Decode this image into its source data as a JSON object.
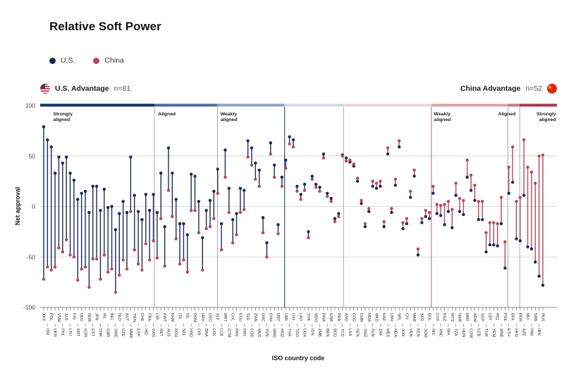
{
  "title": "Relative Soft Power",
  "legend": [
    {
      "label": "U.S.",
      "color": "#1b2a57"
    },
    {
      "label": "China",
      "color": "#b2495a"
    }
  ],
  "headers": {
    "us": {
      "label": "U.S. Advantage",
      "n": "n=81"
    },
    "china": {
      "label": "China Advantage",
      "n": "n=52"
    }
  },
  "chart_data": {
    "type": "scatter",
    "subtype": "dumbbell",
    "title": "Relative Soft Power",
    "xlabel": "ISO country code",
    "ylabel": "Net approval",
    "ylim": [
      -100,
      100
    ],
    "yticks": [
      100,
      50,
      0,
      -50,
      -100
    ],
    "grid": "horizontal",
    "legend_position": "top-left",
    "series_names": [
      "U.S.",
      "China"
    ],
    "colors": {
      "us": "#1b2a57",
      "china": "#b2495a"
    },
    "n_us_advantage": 81,
    "n_china_advantage": 52,
    "sections": [
      {
        "label": "Strongly aligned",
        "x_pct": 0.025,
        "align": "start"
      },
      {
        "label": "Aligned",
        "x_pct": 0.228,
        "align": "start"
      },
      {
        "label": "Weakly aligned",
        "x_pct": 0.349,
        "align": "start"
      },
      {
        "label": "Weakly aligned",
        "x_pct": 0.762,
        "align": "start"
      },
      {
        "label": "Aligned",
        "x_pct": 0.92,
        "align": "end"
      },
      {
        "label": "Strongly aligned",
        "x_pct": 0.998,
        "align": "end"
      }
    ],
    "dividers": [
      {
        "x_pct": 0.221,
        "color": "#a8a8a8"
      },
      {
        "x_pct": 0.343,
        "color": "#a8a8a8"
      },
      {
        "x_pct": 0.473,
        "color": "#1b2a57"
      },
      {
        "x_pct": 0.587,
        "color": "#a8a8a8"
      },
      {
        "x_pct": 0.757,
        "color": "#b06a74"
      },
      {
        "x_pct": 0.905,
        "color": "#a8a8a8"
      },
      {
        "x_pct": 0.928,
        "color": "#a8a8a8"
      }
    ],
    "top_bar_segments": [
      {
        "from": 0.0,
        "to": 0.221,
        "color": "#1b2f5e"
      },
      {
        "from": 0.221,
        "to": 0.343,
        "color": "#51699e"
      },
      {
        "from": 0.343,
        "to": 0.473,
        "color": "#8fa3c6"
      },
      {
        "from": 0.473,
        "to": 0.587,
        "color": "#d3d9e6"
      },
      {
        "from": 0.587,
        "to": 0.757,
        "color": "#e6d6d9"
      },
      {
        "from": 0.757,
        "to": 0.905,
        "color": "#d3a4ab"
      },
      {
        "from": 0.905,
        "to": 0.928,
        "color": "#bc7c87"
      },
      {
        "from": 0.928,
        "to": 1.0,
        "color": "#a23b4f"
      }
    ],
    "countries": [
      [
        "XKX",
        79,
        -72
      ],
      [
        "ISR",
        66,
        -60
      ],
      [
        "POL",
        59,
        -63
      ],
      [
        "UKR",
        33,
        -60
      ],
      [
        "VNM",
        49,
        -41
      ],
      [
        "PHL",
        43,
        -45
      ],
      [
        "ALB",
        49,
        -33
      ],
      [
        "LTU",
        33,
        -48
      ],
      [
        "FIN",
        26,
        -50
      ],
      [
        "PRT",
        7,
        -73
      ],
      [
        "DEU",
        13,
        -62
      ],
      [
        "KOR",
        15,
        -60
      ],
      [
        "NOR",
        -6,
        -80
      ],
      [
        "EST",
        20,
        -52
      ],
      [
        "JPN",
        20,
        -52
      ],
      [
        "DNK",
        -4,
        -72
      ],
      [
        "IRL",
        17,
        -48
      ],
      [
        "GBR",
        -1,
        -65
      ],
      [
        "BEL",
        0,
        -62
      ],
      [
        "SWE",
        -23,
        -85
      ],
      [
        "NLD",
        -7,
        -68
      ],
      [
        "CZE",
        5,
        -53
      ],
      [
        "AUT",
        -6,
        -62
      ],
      [
        "MMR",
        49,
        -5
      ],
      [
        "TWN",
        11,
        -43
      ],
      [
        "ESP",
        -5,
        -57
      ],
      [
        "CHE",
        -13,
        -63
      ],
      [
        "IND",
        12,
        -37
      ],
      [
        "FRA",
        -4,
        -53
      ],
      [
        "CAN",
        12,
        -34
      ],
      [
        "LVA",
        -6,
        -51
      ],
      [
        "MLT",
        33,
        -12
      ],
      [
        "KWT",
        -20,
        -59
      ],
      [
        "AUS",
        58,
        16
      ],
      [
        "KHM",
        33,
        -10
      ],
      [
        "ROU",
        7,
        -32
      ],
      [
        "ITA",
        -17,
        -57
      ],
      [
        "NZL",
        -17,
        -53
      ],
      [
        "ISL",
        -28,
        -65
      ],
      [
        "HND",
        32,
        -4
      ],
      [
        "DOM",
        30,
        -4
      ],
      [
        "CRI",
        5,
        -26
      ],
      [
        "HRV",
        -31,
        -63
      ],
      [
        "BRA",
        -4,
        -22
      ],
      [
        "GEO",
        6,
        -20
      ],
      [
        "COL",
        15,
        -12
      ],
      [
        "SLV",
        37,
        13
      ],
      [
        "LUX",
        -17,
        -43
      ],
      [
        "MRT",
        56,
        29
      ],
      [
        "GTM",
        18,
        -6
      ],
      [
        "CHL",
        -13,
        -36
      ],
      [
        "PAN",
        -7,
        -28
      ],
      [
        "ECU",
        18,
        -6
      ],
      [
        "PRY",
        16,
        -3
      ],
      [
        "SLE",
        65,
        49
      ],
      [
        "COG",
        58,
        41
      ],
      [
        "ZWE",
        43,
        27
      ],
      [
        "MUS",
        36,
        20
      ],
      [
        "GRC",
        -11,
        -26
      ],
      [
        "SVN",
        -36,
        -50
      ],
      [
        "GHA",
        63,
        52
      ],
      [
        "MNG",
        41,
        29
      ],
      [
        "URY",
        -18,
        -27
      ],
      [
        "MOZ",
        29,
        20
      ],
      [
        "LBR",
        46,
        38
      ],
      [
        "THA",
        69,
        62
      ],
      [
        "GIN",
        66,
        59
      ],
      [
        "TGO",
        20,
        15
      ],
      [
        "LAO",
        12,
        7
      ],
      [
        "UGA",
        22,
        16
      ],
      [
        "SVK",
        -25,
        -31
      ],
      [
        "IDN",
        30,
        27
      ],
      [
        "MDG",
        22,
        19
      ],
      [
        "ZMB",
        19,
        15
      ],
      [
        "BWA",
        52,
        48
      ],
      [
        "BEN",
        13,
        10
      ],
      [
        "GNB",
        8,
        5
      ],
      [
        "BGD",
        -12,
        -15
      ],
      [
        "PER",
        -7,
        -10
      ],
      [
        "TCD",
        51,
        50
      ],
      [
        "ARG",
        48,
        45
      ],
      [
        "LKA",
        44,
        46
      ],
      [
        "COD",
        40,
        42
      ],
      [
        "SEN",
        25,
        28
      ],
      [
        "CMR",
        3,
        6
      ],
      [
        "SWZ",
        -20,
        -17
      ],
      [
        "MDA",
        -5,
        -2
      ],
      [
        "TUN",
        20,
        25
      ],
      [
        "MKD",
        18,
        23
      ],
      [
        "ZAF",
        20,
        25
      ],
      [
        "KAZ",
        -20,
        -15
      ],
      [
        "MEX",
        52,
        58
      ],
      [
        "LBN",
        -6,
        -2
      ],
      [
        "NGA",
        21,
        27
      ],
      [
        "NPL",
        59,
        65
      ],
      [
        "JOR",
        -22,
        -16
      ],
      [
        "CIV",
        -17,
        -12
      ],
      [
        "VEN",
        9,
        15
      ],
      [
        "MAR",
        30,
        36
      ],
      [
        "KEN",
        -48,
        -42
      ],
      [
        "AFG",
        -16,
        -12
      ],
      [
        "SOM",
        -10,
        -4
      ],
      [
        "BOL",
        -12,
        -6
      ],
      [
        "NIC",
        13,
        20
      ],
      [
        "CYP",
        -7,
        2
      ],
      [
        "XNC",
        -9,
        1
      ],
      [
        "KGZ",
        -18,
        2
      ],
      [
        "BIH",
        -5,
        5
      ],
      [
        "MYS",
        -21,
        -3
      ],
      [
        "TZA",
        11,
        23
      ],
      [
        "NAM",
        -5,
        8
      ],
      [
        "HUN",
        -8,
        6
      ],
      [
        "MWI",
        29,
        46
      ],
      [
        "COM",
        16,
        31
      ],
      [
        "ARM",
        6,
        21
      ],
      [
        "UZB",
        -13,
        5
      ],
      [
        "SGP",
        -13,
        5
      ],
      [
        "TUR",
        -45,
        -26
      ],
      [
        "LBY",
        -38,
        -16
      ],
      [
        "YEM",
        -38,
        -16
      ],
      [
        "IRQ",
        -39,
        -17
      ],
      [
        "MNE",
        -17,
        9
      ],
      [
        "PSE",
        -61,
        -35
      ],
      [
        "ETH",
        13,
        39
      ],
      [
        "BFA",
        24,
        59
      ],
      [
        "HKG",
        -32,
        5
      ],
      [
        "BGR",
        -34,
        9
      ],
      [
        "AZE",
        11,
        66
      ],
      [
        "MLI",
        -40,
        39
      ],
      [
        "PAK",
        -42,
        34
      ],
      [
        "SRB",
        -55,
        23
      ],
      [
        "IRN",
        -69,
        50
      ],
      [
        "RUS",
        -78,
        51
      ]
    ]
  }
}
